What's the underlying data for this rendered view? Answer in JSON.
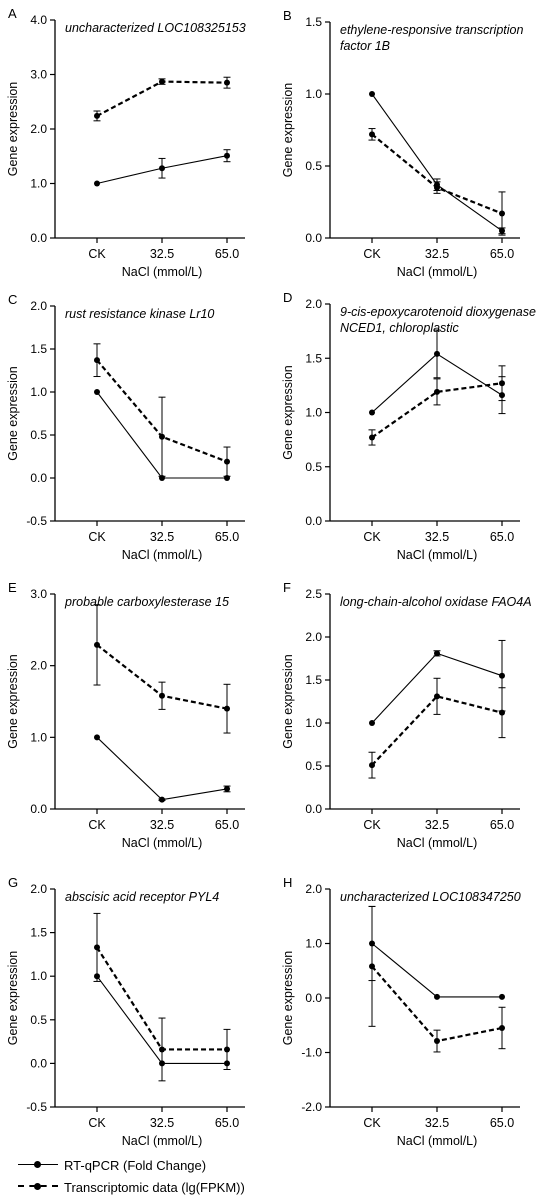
{
  "chart_data": [
    {
      "panel": "A",
      "type": "line",
      "title": "uncharacterized LOC108325153",
      "xlabel": "NaCl (mmol/L)",
      "ylabel": "Gene expression",
      "categories": [
        "CK",
        "32.5",
        "65.0"
      ],
      "ylim": [
        0,
        4
      ],
      "yticks": [
        "0.0",
        "1.0",
        "2.0",
        "3.0",
        "4.0"
      ],
      "series": [
        {
          "name": "RT-qPCR (Fold Change)",
          "style": "solid",
          "values": [
            1.0,
            1.28,
            1.51
          ],
          "errors": [
            0,
            0.18,
            0.11
          ]
        },
        {
          "name": "Transcriptomic data (lg(FPKM))",
          "style": "dashed",
          "values": [
            2.24,
            2.87,
            2.85
          ],
          "errors": [
            0.09,
            0.05,
            0.1
          ]
        }
      ]
    },
    {
      "panel": "B",
      "type": "line",
      "title": "ethylene-responsive transcription factor 1B",
      "xlabel": "NaCl (mmol/L)",
      "ylabel": "Gene expression",
      "categories": [
        "CK",
        "32.5",
        "65.0"
      ],
      "ylim": [
        0,
        1.5
      ],
      "yticks": [
        "0.0",
        "0.5",
        "1.0",
        "1.5"
      ],
      "series": [
        {
          "name": "RT-qPCR (Fold Change)",
          "style": "solid",
          "values": [
            1.0,
            0.37,
            0.05
          ],
          "errors": [
            0,
            0.04,
            0.02
          ]
        },
        {
          "name": "Transcriptomic data (lg(FPKM))",
          "style": "dashed",
          "values": [
            0.72,
            0.35,
            0.17
          ],
          "errors": [
            0.04,
            0.04,
            0.15
          ]
        }
      ]
    },
    {
      "panel": "C",
      "type": "line",
      "title": "rust resistance kinase Lr10",
      "xlabel": "NaCl (mmol/L)",
      "ylabel": "Gene expression",
      "categories": [
        "CK",
        "32.5",
        "65.0"
      ],
      "ylim": [
        -0.5,
        2
      ],
      "yticks": [
        "-0.5",
        "0.0",
        "0.5",
        "1.0",
        "1.5",
        "2.0"
      ],
      "series": [
        {
          "name": "RT-qPCR (Fold Change)",
          "style": "solid",
          "values": [
            1.0,
            0.0,
            0.0
          ],
          "errors": [
            0,
            0,
            0
          ]
        },
        {
          "name": "Transcriptomic data (lg(FPKM))",
          "style": "dashed",
          "values": [
            1.37,
            0.48,
            0.19
          ],
          "errors": [
            0.19,
            0.46,
            0.17
          ]
        }
      ]
    },
    {
      "panel": "D",
      "type": "line",
      "title": "9-cis-epoxycarotenoid dioxygenase NCED1, chloroplastic",
      "xlabel": "NaCl (mmol/L)",
      "ylabel": "Gene expression",
      "categories": [
        "CK",
        "32.5",
        "65.0"
      ],
      "ylim": [
        0,
        2
      ],
      "yticks": [
        "0.0",
        "0.5",
        "1.0",
        "1.5",
        "2.0"
      ],
      "series": [
        {
          "name": "RT-qPCR (Fold Change)",
          "style": "solid",
          "values": [
            1.0,
            1.54,
            1.16
          ],
          "errors": [
            0,
            0.22,
            0.17
          ]
        },
        {
          "name": "Transcriptomic data (lg(FPKM))",
          "style": "dashed",
          "values": [
            0.77,
            1.19,
            1.27
          ],
          "errors": [
            0.07,
            0.12,
            0.16
          ]
        }
      ]
    },
    {
      "panel": "E",
      "type": "line",
      "title": "probable carboxylesterase 15",
      "xlabel": "NaCl (mmol/L)",
      "ylabel": "Gene expression",
      "categories": [
        "CK",
        "32.5",
        "65.0"
      ],
      "ylim": [
        0,
        3
      ],
      "yticks": [
        "0.0",
        "1.0",
        "2.0",
        "3.0"
      ],
      "series": [
        {
          "name": "RT-qPCR (Fold Change)",
          "style": "solid",
          "values": [
            1.0,
            0.13,
            0.28
          ],
          "errors": [
            0,
            0.01,
            0.04
          ]
        },
        {
          "name": "Transcriptomic data (lg(FPKM))",
          "style": "dashed",
          "values": [
            2.29,
            1.58,
            1.4
          ],
          "errors": [
            0.56,
            0.19,
            0.34
          ]
        }
      ]
    },
    {
      "panel": "F",
      "type": "line",
      "title": "long-chain-alcohol oxidase FAO4A",
      "xlabel": "NaCl (mmol/L)",
      "ylabel": "Gene expression",
      "categories": [
        "CK",
        "32.5",
        "65.0"
      ],
      "ylim": [
        0,
        2.5
      ],
      "yticks": [
        "0.0",
        "0.5",
        "1.0",
        "1.5",
        "2.0",
        "2.5"
      ],
      "series": [
        {
          "name": "RT-qPCR (Fold Change)",
          "style": "solid",
          "values": [
            1.0,
            1.81,
            1.55
          ],
          "errors": [
            0,
            0.03,
            0.41
          ]
        },
        {
          "name": "Transcriptomic data (lg(FPKM))",
          "style": "dashed",
          "values": [
            0.51,
            1.31,
            1.12
          ],
          "errors": [
            0.15,
            0.21,
            0.29
          ]
        }
      ]
    },
    {
      "panel": "G",
      "type": "line",
      "title": "abscisic acid receptor PYL4",
      "xlabel": "NaCl (mmol/L)",
      "ylabel": "Gene expression",
      "categories": [
        "CK",
        "32.5",
        "65.0"
      ],
      "ylim": [
        -0.5,
        2
      ],
      "yticks": [
        "-0.5",
        "0.0",
        "0.5",
        "1.0",
        "1.5",
        "2.0"
      ],
      "series": [
        {
          "name": "RT-qPCR (Fold Change)",
          "style": "solid",
          "values": [
            1.0,
            0.0,
            0.0
          ],
          "errors": [
            0,
            0,
            0
          ]
        },
        {
          "name": "Transcriptomic data (lg(FPKM))",
          "style": "dashed",
          "values": [
            1.33,
            0.16,
            0.16
          ],
          "errors": [
            0.39,
            0.36,
            0.23
          ]
        }
      ]
    },
    {
      "panel": "H",
      "type": "line",
      "title": "uncharacterized LOC108347250",
      "xlabel": "NaCl (mmol/L)",
      "ylabel": "Gene expression",
      "categories": [
        "CK",
        "32.5",
        "65.0"
      ],
      "ylim": [
        -2,
        2
      ],
      "yticks": [
        "-2.0",
        "-1.0",
        "0.0",
        "1.0",
        "2.0"
      ],
      "series": [
        {
          "name": "RT-qPCR (Fold Change)",
          "style": "solid",
          "values": [
            1.0,
            0.02,
            0.02
          ],
          "errors": [
            0.68,
            0,
            0
          ]
        },
        {
          "name": "Transcriptomic data (lg(FPKM))",
          "style": "dashed",
          "values": [
            0.58,
            -0.79,
            -0.55
          ],
          "errors": [
            1.1,
            0.2,
            0.38
          ]
        }
      ]
    }
  ],
  "legend": {
    "solid_label": "RT-qPCR (Fold Change)",
    "dashed_label": "Transcriptomic data (lg(FPKM))"
  }
}
